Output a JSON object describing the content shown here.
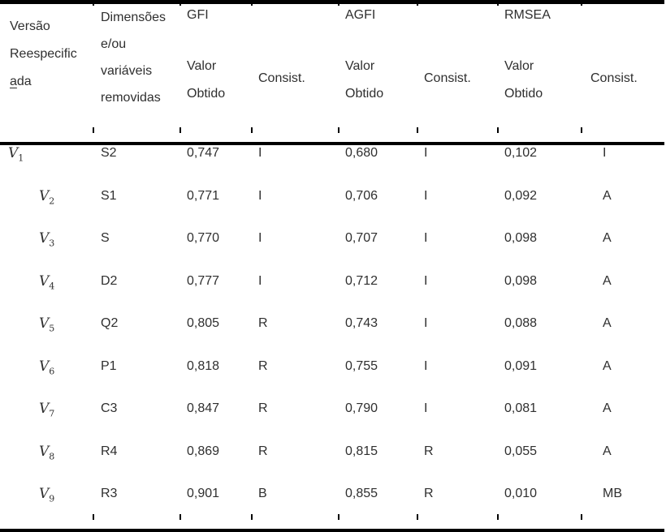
{
  "colors": {
    "text": "#2f2f2f",
    "rules": "#000000"
  },
  "table": {
    "header": {
      "col_version": {
        "line1": "Versão",
        "line2": "Reespecific",
        "line3_underlined_part": "a",
        "line3_rest": "da"
      },
      "col_removed": {
        "line1": "Dimensões",
        "line2": "e/ou",
        "line3": "variáveis",
        "line4": "removidas"
      },
      "groups": [
        {
          "label": "GFI",
          "sub_value_line1": "Valor",
          "sub_value_line2": "Obtido",
          "sub_consist": "Consist."
        },
        {
          "label": "AGFI",
          "sub_value_line1": "Valor",
          "sub_value_line2": "Obtido",
          "sub_consist": "Consist."
        },
        {
          "label": "RMSEA",
          "sub_value_line1": "Valor",
          "sub_value_line2": "Obtido",
          "sub_consist": "Consist."
        }
      ]
    },
    "rows": [
      {
        "version_letter": "V",
        "version_sub": "1",
        "removed": "S2",
        "gfi_value": "0,747",
        "gfi_consist": "I",
        "agfi_value": "0,680",
        "agfi_consist": "I",
        "rmsea_value": "0,102",
        "rmsea_consist": "I"
      },
      {
        "version_letter": "V",
        "version_sub": "2",
        "removed": "S1",
        "gfi_value": "0,771",
        "gfi_consist": "I",
        "agfi_value": "0,706",
        "agfi_consist": "I",
        "rmsea_value": "0,092",
        "rmsea_consist": "A"
      },
      {
        "version_letter": "V",
        "version_sub": "3",
        "removed": "S",
        "gfi_value": "0,770",
        "gfi_consist": "I",
        "agfi_value": "0,707",
        "agfi_consist": "I",
        "rmsea_value": "0,098",
        "rmsea_consist": "A"
      },
      {
        "version_letter": "V",
        "version_sub": "4",
        "removed": "D2",
        "gfi_value": "0,777",
        "gfi_consist": "I",
        "agfi_value": "0,712",
        "agfi_consist": "I",
        "rmsea_value": "0,098",
        "rmsea_consist": "A"
      },
      {
        "version_letter": "V",
        "version_sub": "5",
        "removed": "Q2",
        "gfi_value": "0,805",
        "gfi_consist": "R",
        "agfi_value": "0,743",
        "agfi_consist": "I",
        "rmsea_value": "0,088",
        "rmsea_consist": "A"
      },
      {
        "version_letter": "V",
        "version_sub": "6",
        "removed": "P1",
        "gfi_value": "0,818",
        "gfi_consist": "R",
        "agfi_value": "0,755",
        "agfi_consist": "I",
        "rmsea_value": "0,091",
        "rmsea_consist": "A"
      },
      {
        "version_letter": "V",
        "version_sub": "7",
        "removed": "C3",
        "gfi_value": "0,847",
        "gfi_consist": "R",
        "agfi_value": "0,790",
        "agfi_consist": "I",
        "rmsea_value": "0,081",
        "rmsea_consist": "A"
      },
      {
        "version_letter": "V",
        "version_sub": "8",
        "removed": "R4",
        "gfi_value": "0,869",
        "gfi_consist": "R",
        "agfi_value": "0,815",
        "agfi_consist": "R",
        "rmsea_value": "0,055",
        "rmsea_consist": "A"
      },
      {
        "version_letter": "V",
        "version_sub": "9",
        "removed": "R3",
        "gfi_value": "0,901",
        "gfi_consist": "B",
        "agfi_value": "0,855",
        "agfi_consist": "R",
        "rmsea_value": "0,010",
        "rmsea_consist": "MB"
      }
    ]
  }
}
